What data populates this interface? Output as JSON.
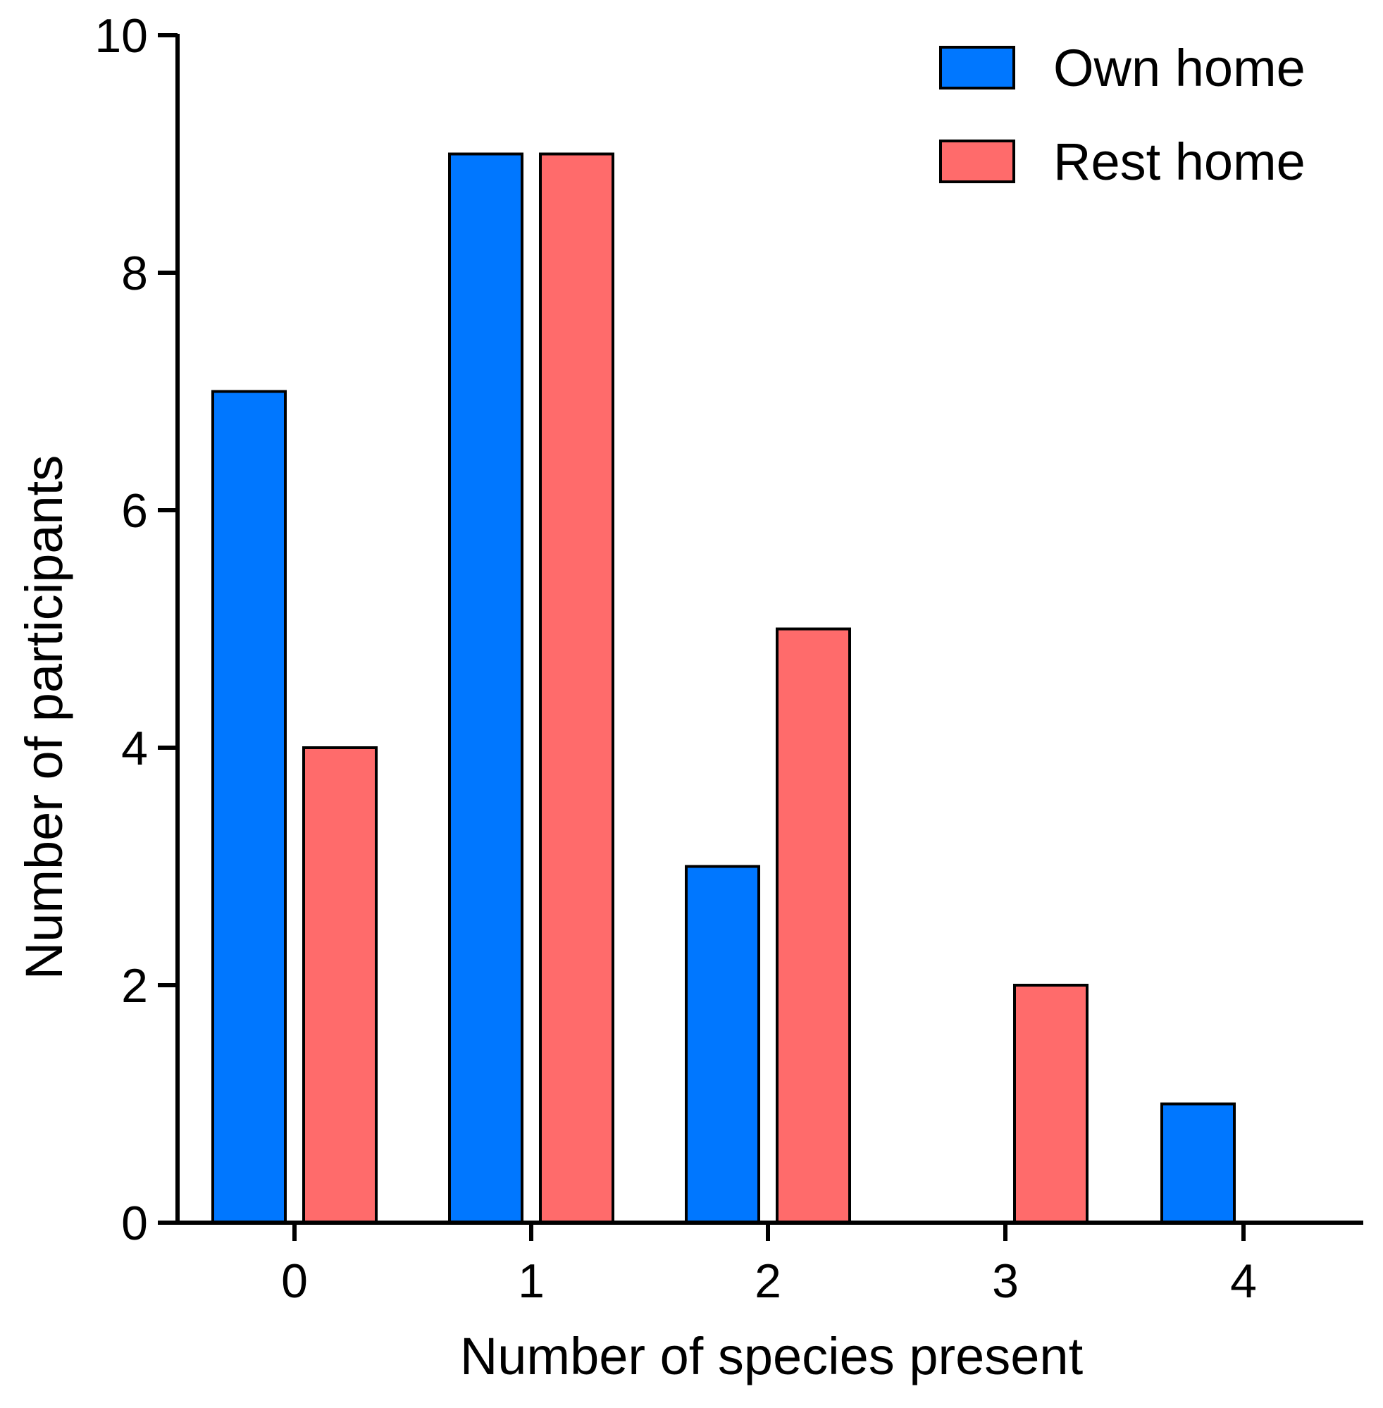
{
  "chart_data": {
    "type": "bar",
    "title": "",
    "xlabel": "Number of species present",
    "ylabel": "Number of participants",
    "categories": [
      "0",
      "1",
      "2",
      "3",
      "4"
    ],
    "series": [
      {
        "name": "Own home",
        "color": "#0077FF",
        "values": [
          7,
          9,
          3,
          0,
          1
        ]
      },
      {
        "name": "Rest home",
        "color": "#FF6B6B",
        "values": [
          4,
          9,
          5,
          2,
          0
        ]
      }
    ],
    "ylim": [
      0,
      10
    ],
    "yticks": [
      0,
      2,
      4,
      6,
      8,
      10
    ],
    "grid": false,
    "legend_position": "top-right"
  }
}
